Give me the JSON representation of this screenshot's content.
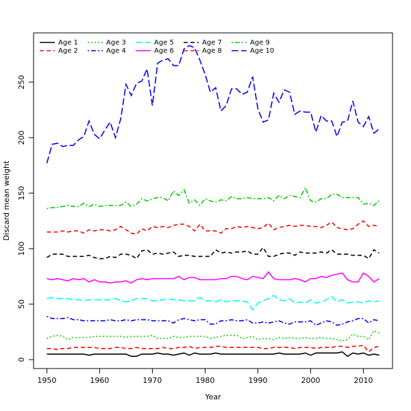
{
  "chart_data": {
    "type": "line",
    "xlabel": "Year",
    "ylabel": "Discard mean weight",
    "x": [
      1950,
      1951,
      1952,
      1953,
      1954,
      1955,
      1956,
      1957,
      1958,
      1959,
      1960,
      1961,
      1962,
      1963,
      1964,
      1965,
      1966,
      1967,
      1968,
      1969,
      1970,
      1971,
      1972,
      1973,
      1974,
      1975,
      1976,
      1977,
      1978,
      1979,
      1980,
      1981,
      1982,
      1983,
      1984,
      1985,
      1986,
      1987,
      1988,
      1989,
      1990,
      1991,
      1992,
      1993,
      1994,
      1995,
      1996,
      1997,
      1998,
      1999,
      2000,
      2001,
      2002,
      2003,
      2004,
      2005,
      2006,
      2007,
      2008,
      2009,
      2010,
      2011,
      2012,
      2013
    ],
    "xlim": [
      1947.48,
      2015.52
    ],
    "xticks": [
      1950,
      1960,
      1970,
      1980,
      1990,
      2000,
      2010
    ],
    "ylim": [
      -8,
      294.4
    ],
    "yticks": [
      0,
      50,
      100,
      150,
      200,
      250
    ],
    "legend": "topleft",
    "series": [
      {
        "name": "Age 1",
        "color": "#000000",
        "dash": "solid",
        "values": [
          5,
          5,
          5,
          5,
          5,
          5,
          5,
          5,
          4,
          5,
          5,
          5,
          5,
          5,
          5,
          5,
          3,
          3,
          5,
          5,
          5,
          6,
          5,
          5,
          4,
          5,
          6,
          4,
          6,
          5,
          5,
          5,
          6,
          5,
          5,
          5,
          5,
          5,
          5,
          5,
          5,
          5,
          5,
          5,
          6,
          5,
          5,
          5,
          5,
          6,
          4,
          6,
          6,
          6,
          6,
          6,
          7,
          3,
          6,
          5,
          6,
          4,
          5,
          4
        ]
      },
      {
        "name": "Age 2",
        "color": "#ff0000",
        "dash": "dashed",
        "values": [
          10,
          10,
          9,
          10,
          10,
          11,
          11,
          11,
          11,
          11,
          10,
          10,
          10,
          11,
          11,
          10,
          10,
          11,
          10,
          10,
          10,
          10,
          11,
          10,
          10,
          11,
          11,
          12,
          10,
          11,
          11,
          11,
          12,
          12,
          11,
          11,
          11,
          11,
          11,
          11,
          11,
          10,
          10,
          11,
          11,
          11,
          11,
          10,
          11,
          11,
          11,
          10,
          11,
          11,
          11,
          12,
          12,
          11,
          12,
          12,
          13,
          7,
          11,
          12
        ]
      },
      {
        "name": "Age 3",
        "color": "#00cd00",
        "dash": "dotted",
        "values": [
          19,
          21,
          22,
          21,
          18,
          20,
          20,
          20,
          20,
          21,
          21,
          21,
          21,
          21,
          21,
          20,
          21,
          21,
          21,
          21,
          22,
          19,
          19,
          19,
          21,
          20,
          20,
          21,
          21,
          21,
          21,
          19,
          20,
          21,
          22,
          22,
          22,
          19,
          20,
          21,
          18,
          19,
          19,
          18,
          20,
          19,
          20,
          19,
          19,
          20,
          19,
          19,
          20,
          19,
          19,
          18,
          17,
          18,
          23,
          21,
          21,
          18,
          26,
          24
        ]
      },
      {
        "name": "Age 4",
        "color": "#0000ff",
        "dash": "dotdash",
        "values": [
          39,
          37,
          37,
          37,
          38,
          36,
          36,
          35,
          35,
          35,
          35,
          35,
          36,
          35,
          35,
          36,
          35,
          36,
          36,
          36,
          35,
          35,
          35,
          35,
          33,
          36,
          37,
          36,
          35,
          36,
          36,
          32,
          32,
          35,
          35,
          36,
          35,
          35,
          36,
          33,
          33,
          34,
          33,
          34,
          35,
          33,
          32,
          34,
          34,
          34,
          35,
          31,
          33,
          35,
          34,
          31,
          32,
          34,
          35,
          37,
          37,
          33,
          36,
          35
        ]
      },
      {
        "name": "Age 5",
        "color": "#00ffff",
        "dash": "longdash",
        "values": [
          55,
          56,
          55,
          55,
          55,
          54,
          54,
          53,
          54,
          54,
          54,
          54,
          54,
          55,
          53,
          52,
          53,
          55,
          55,
          55,
          53,
          53,
          54,
          55,
          54,
          54,
          53,
          53,
          53,
          56,
          53,
          53,
          52,
          54,
          52,
          53,
          53,
          53,
          52,
          45,
          51,
          53,
          55,
          58,
          54,
          53,
          55,
          51,
          52,
          51,
          54,
          51,
          52,
          54,
          57,
          52,
          54,
          51,
          52,
          52,
          51,
          53,
          52,
          53
        ]
      },
      {
        "name": "Age 6",
        "color": "#ff00ff",
        "dash": "solid",
        "values": [
          73,
          72,
          73,
          72,
          71,
          73,
          72,
          73,
          70,
          72,
          70,
          70,
          69,
          70,
          70,
          71,
          69,
          72,
          73,
          72,
          73,
          73,
          73,
          73,
          73,
          75,
          72,
          74,
          74,
          72,
          72,
          72,
          72,
          73,
          73,
          75,
          75,
          73,
          72,
          75,
          74,
          73,
          79,
          73,
          72,
          72,
          72,
          73,
          72,
          70,
          73,
          73,
          75,
          74,
          76,
          77,
          78,
          72,
          70,
          70,
          78,
          75,
          70,
          73
        ]
      },
      {
        "name": "Age 7",
        "color": "#000000",
        "dash": "dashed",
        "values": [
          92,
          95,
          95,
          95,
          93,
          93,
          93,
          93,
          94,
          92,
          91,
          91,
          93,
          92,
          95,
          95,
          94,
          91,
          98,
          99,
          95,
          96,
          95,
          96,
          97,
          93,
          94,
          94,
          93,
          93,
          93,
          93,
          99,
          96,
          97,
          96,
          97,
          97,
          98,
          95,
          95,
          101,
          93,
          93,
          95,
          96,
          96,
          94,
          97,
          96,
          96,
          96,
          97,
          96,
          99,
          95,
          95,
          95,
          94,
          94,
          94,
          91,
          99,
          96
        ]
      },
      {
        "name": "Age 8",
        "color": "#ff0000",
        "dash": "dashed",
        "values": [
          115,
          115,
          115,
          116,
          115,
          116,
          116,
          114,
          117,
          116,
          117,
          117,
          116,
          117,
          120,
          117,
          114,
          113,
          118,
          116,
          120,
          119,
          120,
          119,
          121,
          122,
          122,
          120,
          116,
          122,
          116,
          116,
          116,
          114,
          118,
          118,
          120,
          119,
          120,
          119,
          118,
          119,
          123,
          117,
          119,
          120,
          121,
          120,
          121,
          121,
          120,
          120,
          119,
          121,
          124,
          119,
          118,
          117,
          118,
          122,
          125,
          120,
          121,
          120
        ]
      },
      {
        "name": "Age 9",
        "color": "#00cd00",
        "dash": "dotdash",
        "values": [
          136,
          137,
          137,
          138,
          139,
          138,
          138,
          141,
          138,
          140,
          138,
          139,
          139,
          139,
          139,
          142,
          138,
          140,
          145,
          143,
          145,
          146,
          146,
          143,
          152,
          148,
          153,
          141,
          144,
          139,
          145,
          143,
          142,
          144,
          143,
          147,
          145,
          145,
          146,
          145,
          145,
          145,
          146,
          143,
          148,
          145,
          148,
          147,
          146,
          155,
          143,
          142,
          145,
          145,
          149,
          149,
          146,
          146,
          146,
          146,
          140,
          141,
          139,
          143
        ]
      },
      {
        "name": "Age 10",
        "color": "#0000ff",
        "dash": "longdash",
        "values": [
          177,
          194,
          195,
          192,
          193,
          193,
          198,
          201,
          215,
          203,
          199,
          207,
          214,
          200,
          217,
          248,
          238,
          249,
          251,
          262,
          229,
          267,
          270,
          271,
          265,
          265,
          280,
          283,
          281,
          270,
          257,
          241,
          245,
          224,
          229,
          244,
          244,
          239,
          241,
          255,
          226,
          214,
          216,
          240,
          232,
          243,
          241,
          221,
          224,
          223,
          223,
          205,
          220,
          215,
          215,
          201,
          214,
          215,
          233,
          214,
          210,
          219,
          204,
          208
        ]
      }
    ]
  }
}
